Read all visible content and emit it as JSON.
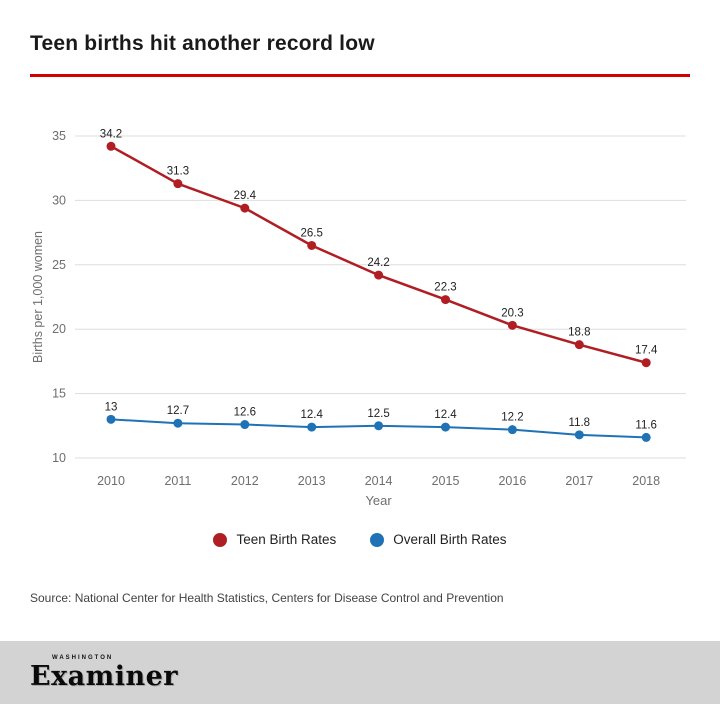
{
  "header": {
    "title": "Teen births hit another record low",
    "accent_color": "#d40000"
  },
  "chart_data": {
    "type": "line",
    "x": [
      2010,
      2011,
      2012,
      2013,
      2014,
      2015,
      2016,
      2017,
      2018
    ],
    "series": [
      {
        "name": "Teen Birth Rates",
        "color": "#b01e24",
        "values": [
          34.2,
          31.3,
          29.4,
          26.5,
          24.2,
          22.3,
          20.3,
          18.8,
          17.4
        ]
      },
      {
        "name": "Overall Birth Rates",
        "color": "#1f72b5",
        "values": [
          13,
          12.7,
          12.6,
          12.4,
          12.5,
          12.4,
          12.2,
          11.8,
          11.6
        ]
      }
    ],
    "xlabel": "Year",
    "ylabel": "Births per 1,000 women",
    "ylim": [
      10,
      35
    ],
    "yticks": [
      10,
      15,
      20,
      25,
      30,
      35
    ],
    "grid": true,
    "legend_position": "bottom"
  },
  "source": "Source: National Center for Health Statistics, Centers for Disease Control and Prevention",
  "footer": {
    "brand_top": "WASHINGTON",
    "brand": "Examiner"
  }
}
